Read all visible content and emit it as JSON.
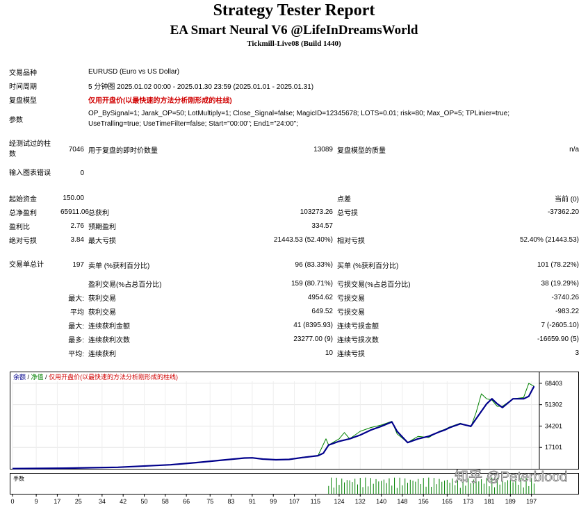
{
  "header": {
    "title": "Strategy Tester Report",
    "subtitle": "EA Smart Neural V6 @LifeInDreamsWorld",
    "build": "Tickmill-Live08 (Build 1440)"
  },
  "settings": {
    "symbol_label": "交易品种",
    "symbol_value": "EURUSD (Euro vs US Dollar)",
    "period_label": "时间周期",
    "period_value": "5 分钟图 2025.01.02 00:00 - 2025.01.30 23:59 (2025.01.01 - 2025.01.31)",
    "model_label": "复盘模型",
    "model_value": "仅用开盘价(以最快速的方法分析刚形成的柱线)",
    "params_label": "参数",
    "params_line1": "OP_BySignal=1; Jarak_OP=50; LotMultiply=1; Close_Signal=false; MagicID=12345678; LOTS=0.01; risk=80; Max_OP=5; TPLinier=true;",
    "params_line2": "UseTralling=true; UseTimeFilter=false; Start=\"00:00\"; End1=\"24:00\";",
    "bars_label": "经测试过的柱数",
    "bars_value": "7046",
    "ticks_label": "用于复盘的即时价数量",
    "ticks_value": "13089",
    "quality_label": "复盘模型的质量",
    "quality_value": "n/a",
    "errors_label": "输入图表错误",
    "errors_value": "0"
  },
  "results": {
    "initial_deposit_label": "起始资金",
    "initial_deposit": "150.00",
    "spread_label": "点差",
    "spread": "当前 (0)",
    "net_profit_label": "总净盈利",
    "net_profit": "65911.06",
    "gross_profit_label": "总获利",
    "gross_profit": "103273.26",
    "gross_loss_label": "总亏损",
    "gross_loss": "-37362.20",
    "profit_factor_label": "盈利比",
    "profit_factor": "2.76",
    "expected_payoff_label": "预期盈利",
    "expected_payoff": "334.57",
    "abs_drawdown_label": "绝对亏损",
    "abs_drawdown": "3.84",
    "max_drawdown_label": "最大亏损",
    "max_drawdown": "21443.53 (52.40%)",
    "rel_drawdown_label": "相对亏损",
    "rel_drawdown": "52.40% (21443.53)",
    "total_trades_label": "交易单总计",
    "total_trades": "197",
    "short_label": "卖单 (%获利百分比)",
    "short": "96 (83.33%)",
    "long_label": "买单 (%获利百分比)",
    "long": "101 (78.22%)",
    "profit_trades_label": "盈利交易(%占总百分比)",
    "profit_trades": "159 (80.71%)",
    "loss_trades_label": "亏损交易(%占总百分比)",
    "loss_trades": "38 (19.29%)",
    "largest_prefix": "最大:",
    "largest_profit_label": "获利交易",
    "largest_profit": "4954.62",
    "largest_loss_label": "亏损交易",
    "largest_loss": "-3740.26",
    "average_prefix": "平均",
    "average_profit_label": "获利交易",
    "average_profit": "649.52",
    "average_loss_label": "亏损交易",
    "average_loss": "-983.22",
    "max_prefix": "最大:",
    "max_consec_wins_money_label": "连续获利金额",
    "max_consec_wins_money": "41 (8395.93)",
    "max_consec_losses_money_label": "连续亏损金额",
    "max_consec_losses_money": "7 (-2605.10)",
    "most_prefix": "最多:",
    "max_consec_profit_label": "连续获利次数",
    "max_consec_profit": "23277.00 (9)",
    "max_consec_loss_label": "连续亏损次数",
    "max_consec_loss": "-16659.90 (5)",
    "avg_prefix": "平均:",
    "avg_consec_wins_label": "连续获利",
    "avg_consec_wins": "10",
    "avg_consec_losses_label": "连续亏损",
    "avg_consec_losses": "3"
  },
  "chart_legend": {
    "balance": "余额",
    "sep": " / ",
    "equity": "净值",
    "sep2": " / ",
    "model": "仅用开盘价(以最快速的方法分析刚形成的柱线)",
    "lots_label": "手数"
  },
  "watermark": "知乎 @Peterblood",
  "colors": {
    "balance": "#00008b",
    "equity": "#008000",
    "model_text": "#d00000",
    "volume": "#008000"
  },
  "chart_data": {
    "type": "line",
    "title": "",
    "xlabel": "",
    "ylabel": "",
    "x_ticks": [
      0,
      9,
      17,
      25,
      34,
      42,
      50,
      58,
      66,
      75,
      83,
      91,
      99,
      107,
      115,
      124,
      132,
      140,
      148,
      156,
      165,
      173,
      181,
      189,
      197
    ],
    "y_ticks": [
      68403,
      51302,
      34201,
      17101
    ],
    "ylim": [
      0,
      70000
    ],
    "xlim": [
      0,
      200
    ],
    "series": [
      {
        "name": "余额",
        "x": [
          0,
          20,
          40,
          60,
          70,
          80,
          88,
          91,
          95,
          100,
          105,
          110,
          116,
          118,
          120,
          124,
          128,
          132,
          136,
          140,
          144,
          146,
          150,
          154,
          158,
          162,
          164,
          166,
          170,
          174,
          176,
          180,
          182,
          184,
          186,
          190,
          194,
          196,
          198
        ],
        "values": [
          150,
          500,
          1200,
          3200,
          5000,
          7000,
          8600,
          8800,
          7800,
          7200,
          7500,
          9000,
          10500,
          12500,
          19000,
          22000,
          24000,
          27000,
          31000,
          34000,
          37500,
          30000,
          21000,
          24000,
          26000,
          29500,
          31000,
          33000,
          36000,
          34000,
          40000,
          52000,
          56000,
          52000,
          49000,
          56000,
          56000,
          58000,
          66000
        ]
      },
      {
        "name": "净值",
        "x": [
          0,
          20,
          40,
          60,
          70,
          80,
          88,
          91,
          95,
          100,
          105,
          110,
          116,
          117,
          119,
          120,
          124,
          126,
          128,
          132,
          136,
          140,
          144,
          146,
          150,
          154,
          158,
          162,
          164,
          166,
          170,
          174,
          176,
          178,
          180,
          182,
          184,
          186,
          190,
          194,
          196,
          198
        ],
        "values": [
          150,
          500,
          1200,
          3200,
          5000,
          7000,
          8600,
          8900,
          7700,
          7100,
          7600,
          9200,
          10700,
          15000,
          24000,
          19000,
          24000,
          29000,
          24000,
          30000,
          33000,
          35000,
          38000,
          28000,
          21000,
          26000,
          25000,
          30000,
          31500,
          33500,
          36500,
          33500,
          45000,
          60000,
          56000,
          55000,
          50000,
          50000,
          56000,
          57000,
          68403,
          66000
        ]
      }
    ],
    "volume_series": {
      "name": "手数",
      "start_x": 120,
      "end_x": 198,
      "max_height_fraction": 0.9
    }
  }
}
